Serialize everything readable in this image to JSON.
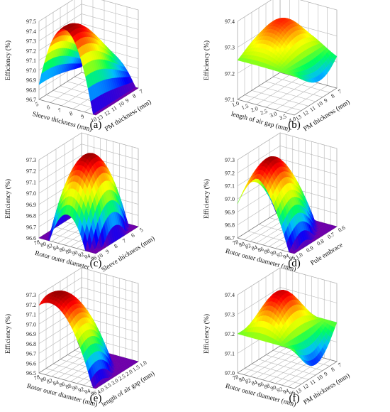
{
  "chart_data": [
    {
      "panel": "a",
      "caption": "(a)",
      "type": "surface",
      "zlabel": "Efficiency (%)",
      "xlabel": "Sleeve thickness (mm)",
      "xticks": [
        "5",
        "6",
        "7",
        "8",
        "9",
        "10"
      ],
      "ylabel": "PM thickness (mm)",
      "yticks": [
        "13",
        "12",
        "11",
        "10",
        "9",
        "8",
        "7"
      ],
      "zticks": [
        "96.7",
        "96.8",
        "96.9",
        "97.0",
        "97.1",
        "97.2",
        "97.3",
        "97.4",
        "97.5"
      ],
      "zlim": [
        96.7,
        97.5
      ],
      "peak_efficiency": 97.5,
      "min_efficiency": 96.7,
      "colormap": [
        "#6a0dad",
        "#0000ff",
        "#00c0ff",
        "#00ff60",
        "#c0ff00",
        "#ffff00",
        "#ff9000",
        "#ff0000",
        "#a00000"
      ]
    },
    {
      "panel": "b",
      "caption": "(b)",
      "type": "surface",
      "zlabel": "Efficiency (%)",
      "xlabel": "length of air gap (mm)",
      "xticks": [
        "1.0",
        "1.5",
        "2.0",
        "2.5",
        "3.0",
        "3.5",
        "4.0"
      ],
      "ylabel": "PM thickness (mm)",
      "yticks": [
        "13",
        "12",
        "11",
        "10",
        "9",
        "8",
        "7"
      ],
      "zticks": [
        "97.1",
        "97.2",
        "97.3",
        "97.4"
      ],
      "zlim": [
        97.1,
        97.45
      ],
      "peak_efficiency": 97.45,
      "min_efficiency": 97.12
    },
    {
      "panel": "c",
      "caption": "(c)",
      "type": "surface",
      "zlabel": "Efficiency (%)",
      "xlabel": "Rotor outer diameter",
      "xticks": [
        "78",
        "80",
        "82",
        "84",
        "86",
        "88",
        "90",
        "92",
        "94",
        "96"
      ],
      "ylabel": "Sleeve thickness (mm)",
      "yticks": [
        "10",
        "9",
        "8",
        "7",
        "6",
        "5"
      ],
      "zticks": [
        "96.6",
        "96.7",
        "96.8",
        "96.9",
        "97.0",
        "97.1",
        "97.2",
        "97.3"
      ],
      "zlim": [
        96.6,
        97.3
      ],
      "peak_efficiency": 97.3,
      "min_efficiency": 96.6
    },
    {
      "panel": "d",
      "caption": "(d)",
      "type": "surface",
      "zlabel": "Efficiency (%)",
      "xlabel": "Rotor outer diameter (mm)",
      "xticks": [
        "78",
        "80",
        "82",
        "84",
        "86",
        "88",
        "90",
        "92",
        "94",
        "96"
      ],
      "ylabel": "Pole embrace",
      "yticks": [
        "1.0",
        "0.9",
        "0.8",
        "0.7",
        "0.6"
      ],
      "zticks": [
        "96.7",
        "96.8",
        "96.9",
        "97.0",
        "97.1",
        "97.2",
        "97.3"
      ],
      "zlim": [
        96.7,
        97.3
      ],
      "peak_efficiency": 97.25,
      "min_efficiency": 96.7
    },
    {
      "panel": "e",
      "caption": "(e)",
      "type": "surface",
      "zlabel": "Efficiency (%)",
      "xlabel": "Rotor outer diameter (mm)",
      "xticks": [
        "78",
        "80",
        "82",
        "84",
        "86",
        "88",
        "90",
        "92",
        "94",
        "96"
      ],
      "ylabel": "length of air gap (mm)",
      "yticks": [
        "4.0",
        "3.5",
        "3.0",
        "2.5",
        "2.0",
        "1.5",
        "1.0"
      ],
      "zticks": [
        "96.5",
        "96.6",
        "96.7",
        "96.8",
        "96.9",
        "97.0",
        "97.1",
        "97.2",
        "97.3"
      ],
      "zlim": [
        96.5,
        97.3
      ],
      "peak_efficiency": 97.25,
      "min_efficiency": 96.55
    },
    {
      "panel": "f",
      "caption": "(f)",
      "type": "surface",
      "zlabel": "Efficiency (%)",
      "xlabel": "Rotor outer diameter (mm)",
      "xticks": [
        "78",
        "80",
        "82",
        "84",
        "86",
        "88",
        "90",
        "92",
        "94",
        "96"
      ],
      "ylabel": "PM thickness (mm)",
      "yticks": [
        "13",
        "12",
        "11",
        "10",
        "9",
        "8",
        "7"
      ],
      "zticks": [
        "97.0",
        "97.1",
        "97.2",
        "97.3",
        "97.4"
      ],
      "zlim": [
        96.95,
        97.45
      ],
      "peak_efficiency": 97.45,
      "min_efficiency": 97.0
    }
  ]
}
